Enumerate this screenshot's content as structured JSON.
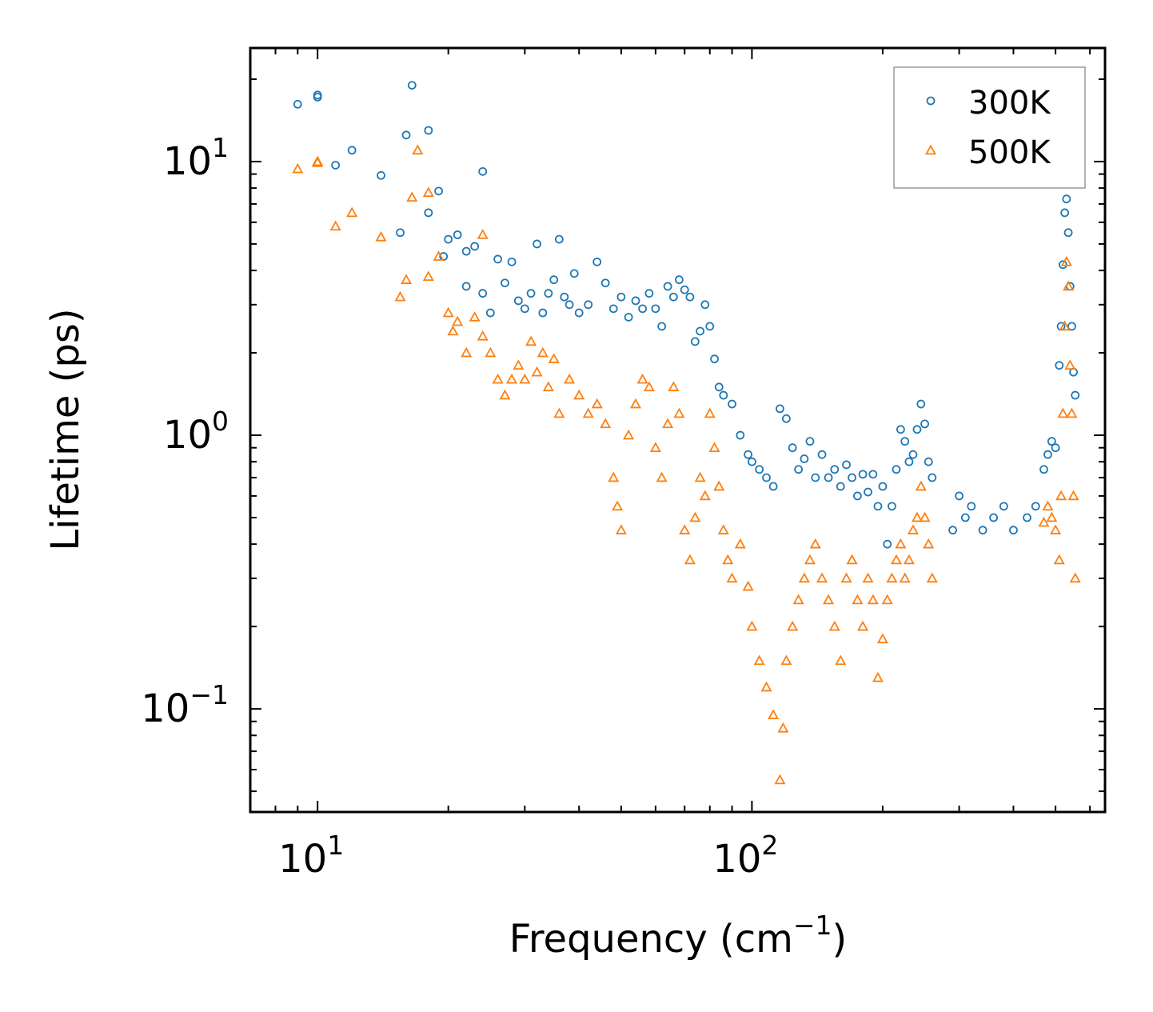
{
  "chart_data": {
    "type": "scatter",
    "title": "",
    "xlabel": "Frequency (cm",
    "xlabel_sup": "−1",
    "xlabel_close": ")",
    "ylabel": "Lifetime (ps)",
    "xscale": "log",
    "yscale": "log",
    "xlim": [
      7,
      650
    ],
    "ylim": [
      0.042,
      26
    ],
    "x_ticks": [
      {
        "value": 10,
        "base": "10",
        "exp": "1"
      },
      {
        "value": 100,
        "base": "10",
        "exp": "2"
      }
    ],
    "y_ticks": [
      {
        "value": 10,
        "base": "10",
        "exp": "1"
      },
      {
        "value": 1,
        "base": "10",
        "exp": "0"
      },
      {
        "value": 0.1,
        "base": "10",
        "exp": "−1"
      }
    ],
    "legend_position": "top-right",
    "series": [
      {
        "name": "300K",
        "marker": "circle",
        "color": "#1f77b4",
        "points": [
          [
            9,
            16.2
          ],
          [
            10,
            17.5
          ],
          [
            10,
            17.2
          ],
          [
            11,
            9.7
          ],
          [
            12,
            11
          ],
          [
            14,
            8.9
          ],
          [
            15.5,
            5.5
          ],
          [
            16,
            12.5
          ],
          [
            16.5,
            19
          ],
          [
            18,
            13
          ],
          [
            18,
            6.5
          ],
          [
            19,
            7.8
          ],
          [
            19.5,
            4.5
          ],
          [
            20,
            5.2
          ],
          [
            21,
            5.4
          ],
          [
            22,
            4.7
          ],
          [
            22,
            3.5
          ],
          [
            23,
            4.9
          ],
          [
            24,
            9.2
          ],
          [
            24,
            3.3
          ],
          [
            25,
            2.8
          ],
          [
            26,
            4.4
          ],
          [
            27,
            3.6
          ],
          [
            28,
            4.3
          ],
          [
            29,
            3.1
          ],
          [
            30,
            2.9
          ],
          [
            31,
            3.3
          ],
          [
            32,
            5
          ],
          [
            33,
            2.8
          ],
          [
            34,
            3.3
          ],
          [
            35,
            3.7
          ],
          [
            36,
            5.2
          ],
          [
            37,
            3.2
          ],
          [
            38,
            3
          ],
          [
            39,
            3.9
          ],
          [
            40,
            2.8
          ],
          [
            42,
            3
          ],
          [
            44,
            4.3
          ],
          [
            46,
            3.6
          ],
          [
            48,
            2.9
          ],
          [
            50,
            3.2
          ],
          [
            52,
            2.7
          ],
          [
            54,
            3.1
          ],
          [
            56,
            2.9
          ],
          [
            58,
            3.3
          ],
          [
            60,
            2.9
          ],
          [
            62,
            2.5
          ],
          [
            64,
            3.5
          ],
          [
            66,
            3.2
          ],
          [
            68,
            3.7
          ],
          [
            70,
            3.4
          ],
          [
            72,
            3.2
          ],
          [
            74,
            2.2
          ],
          [
            76,
            2.4
          ],
          [
            78,
            3
          ],
          [
            80,
            2.5
          ],
          [
            82,
            1.9
          ],
          [
            84,
            1.5
          ],
          [
            86,
            1.4
          ],
          [
            90,
            1.3
          ],
          [
            94,
            1
          ],
          [
            98,
            0.85
          ],
          [
            100,
            0.8
          ],
          [
            104,
            0.75
          ],
          [
            108,
            0.7
          ],
          [
            112,
            0.65
          ],
          [
            116,
            1.25
          ],
          [
            120,
            1.15
          ],
          [
            124,
            0.9
          ],
          [
            128,
            0.75
          ],
          [
            132,
            0.82
          ],
          [
            136,
            0.95
          ],
          [
            140,
            0.7
          ],
          [
            145,
            0.85
          ],
          [
            150,
            0.7
          ],
          [
            155,
            0.75
          ],
          [
            160,
            0.65
          ],
          [
            165,
            0.78
          ],
          [
            170,
            0.7
          ],
          [
            175,
            0.6
          ],
          [
            180,
            0.72
          ],
          [
            185,
            0.62
          ],
          [
            190,
            0.72
          ],
          [
            195,
            0.55
          ],
          [
            200,
            0.65
          ],
          [
            205,
            0.4
          ],
          [
            210,
            0.55
          ],
          [
            215,
            0.75
          ],
          [
            220,
            1.05
          ],
          [
            225,
            0.95
          ],
          [
            230,
            0.8
          ],
          [
            235,
            0.85
          ],
          [
            240,
            1.05
          ],
          [
            245,
            1.3
          ],
          [
            250,
            1.1
          ],
          [
            255,
            0.8
          ],
          [
            260,
            0.7
          ],
          [
            290,
            0.45
          ],
          [
            300,
            0.6
          ],
          [
            310,
            0.5
          ],
          [
            320,
            0.55
          ],
          [
            340,
            0.45
          ],
          [
            360,
            0.5
          ],
          [
            380,
            0.55
          ],
          [
            400,
            0.45
          ],
          [
            430,
            0.5
          ],
          [
            450,
            0.55
          ],
          [
            470,
            0.75
          ],
          [
            480,
            0.85
          ],
          [
            490,
            0.95
          ],
          [
            500,
            0.9
          ],
          [
            510,
            1.8
          ],
          [
            515,
            2.5
          ],
          [
            520,
            4.2
          ],
          [
            525,
            6.5
          ],
          [
            530,
            7.3
          ],
          [
            535,
            5.5
          ],
          [
            540,
            3.5
          ],
          [
            545,
            2.5
          ],
          [
            550,
            1.7
          ],
          [
            555,
            1.4
          ]
        ]
      },
      {
        "name": "500K",
        "marker": "triangle",
        "color": "#ff7f0e",
        "points": [
          [
            9,
            9.4
          ],
          [
            10,
            10
          ],
          [
            10,
            9.9
          ],
          [
            11,
            5.8
          ],
          [
            12,
            6.5
          ],
          [
            14,
            5.3
          ],
          [
            15.5,
            3.2
          ],
          [
            16,
            3.7
          ],
          [
            16.5,
            7.4
          ],
          [
            17,
            11
          ],
          [
            18,
            7.7
          ],
          [
            18,
            3.8
          ],
          [
            19,
            4.5
          ],
          [
            20,
            2.8
          ],
          [
            20.5,
            2.4
          ],
          [
            21,
            2.6
          ],
          [
            22,
            2
          ],
          [
            23,
            2.7
          ],
          [
            24,
            5.4
          ],
          [
            24,
            2.3
          ],
          [
            25,
            2
          ],
          [
            26,
            1.6
          ],
          [
            27,
            1.4
          ],
          [
            28,
            1.6
          ],
          [
            29,
            1.8
          ],
          [
            30,
            1.6
          ],
          [
            31,
            2.2
          ],
          [
            32,
            1.7
          ],
          [
            33,
            2
          ],
          [
            34,
            1.5
          ],
          [
            35,
            1.9
          ],
          [
            36,
            1.2
          ],
          [
            38,
            1.6
          ],
          [
            40,
            1.4
          ],
          [
            42,
            1.2
          ],
          [
            44,
            1.3
          ],
          [
            46,
            1.1
          ],
          [
            48,
            0.7
          ],
          [
            49,
            0.55
          ],
          [
            50,
            0.45
          ],
          [
            52,
            1
          ],
          [
            54,
            1.3
          ],
          [
            56,
            1.6
          ],
          [
            58,
            1.5
          ],
          [
            60,
            0.9
          ],
          [
            62,
            0.7
          ],
          [
            64,
            1.1
          ],
          [
            66,
            1.5
          ],
          [
            68,
            1.2
          ],
          [
            70,
            0.45
          ],
          [
            72,
            0.35
          ],
          [
            74,
            0.5
          ],
          [
            76,
            0.7
          ],
          [
            78,
            0.6
          ],
          [
            80,
            1.2
          ],
          [
            82,
            0.9
          ],
          [
            84,
            0.65
          ],
          [
            86,
            0.45
          ],
          [
            88,
            0.35
          ],
          [
            90,
            0.3
          ],
          [
            94,
            0.4
          ],
          [
            98,
            0.28
          ],
          [
            100,
            0.2
          ],
          [
            104,
            0.15
          ],
          [
            108,
            0.12
          ],
          [
            112,
            0.095
          ],
          [
            116,
            0.055
          ],
          [
            118,
            0.085
          ],
          [
            120,
            0.15
          ],
          [
            124,
            0.2
          ],
          [
            128,
            0.25
          ],
          [
            132,
            0.3
          ],
          [
            136,
            0.35
          ],
          [
            140,
            0.4
          ],
          [
            145,
            0.3
          ],
          [
            150,
            0.25
          ],
          [
            155,
            0.2
          ],
          [
            160,
            0.15
          ],
          [
            165,
            0.3
          ],
          [
            170,
            0.35
          ],
          [
            175,
            0.25
          ],
          [
            180,
            0.2
          ],
          [
            185,
            0.3
          ],
          [
            190,
            0.25
          ],
          [
            195,
            0.13
          ],
          [
            200,
            0.18
          ],
          [
            205,
            0.25
          ],
          [
            210,
            0.3
          ],
          [
            215,
            0.35
          ],
          [
            220,
            0.4
          ],
          [
            225,
            0.3
          ],
          [
            230,
            0.35
          ],
          [
            235,
            0.45
          ],
          [
            240,
            0.5
          ],
          [
            245,
            0.65
          ],
          [
            250,
            0.5
          ],
          [
            255,
            0.4
          ],
          [
            260,
            0.3
          ],
          [
            470,
            0.48
          ],
          [
            480,
            0.55
          ],
          [
            490,
            0.5
          ],
          [
            500,
            0.45
          ],
          [
            510,
            0.35
          ],
          [
            515,
            0.6
          ],
          [
            520,
            1.2
          ],
          [
            525,
            2.5
          ],
          [
            530,
            4.3
          ],
          [
            535,
            3.5
          ],
          [
            540,
            1.8
          ],
          [
            545,
            1.2
          ],
          [
            550,
            0.6
          ],
          [
            555,
            0.3
          ]
        ]
      }
    ]
  }
}
